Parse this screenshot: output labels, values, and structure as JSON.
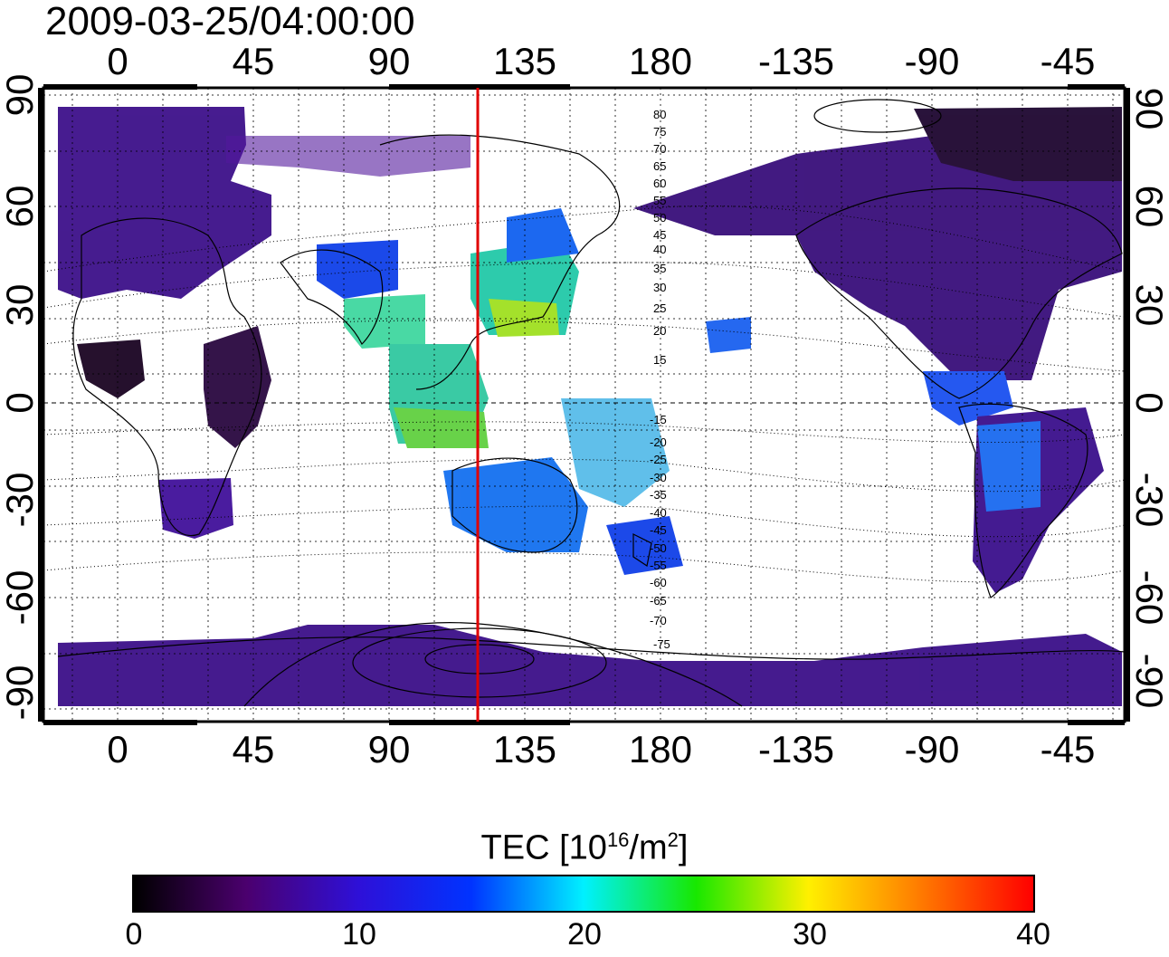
{
  "title": "2009-03-25/04:00:00",
  "map": {
    "lon_tick_labels": [
      "0",
      "45",
      "90",
      "135",
      "180",
      "-135",
      "-90",
      "-45"
    ],
    "lat_tick_labels": [
      "90",
      "60",
      "30",
      "0",
      "-30",
      "-60",
      "-90"
    ],
    "terminator_longitude": 120,
    "terminator_color": "#e00000",
    "contour_labels_north": [
      "80",
      "75",
      "70",
      "65",
      "60",
      "55",
      "50",
      "45",
      "40",
      "35",
      "30",
      "25",
      "20",
      "15"
    ],
    "contour_labels_south": [
      "-15",
      "-20",
      "-25",
      "-30",
      "-35",
      "-40",
      "-45",
      "-50",
      "-55",
      "-60",
      "-65",
      "-70",
      "-75"
    ]
  },
  "colorbar": {
    "title_main": "TEC  [10",
    "title_sup1": "16",
    "title_mid": "/m",
    "title_sup2": "2",
    "title_end": "]",
    "min": 0,
    "max": 40,
    "tick_labels": [
      "0",
      "10",
      "20",
      "30",
      "40"
    ],
    "colormap": [
      "#000000",
      "#4b006e",
      "#2e10d8",
      "#0033ff",
      "#00f0ff",
      "#18e800",
      "#fff000",
      "#ff7a00",
      "#ff0000"
    ]
  }
}
